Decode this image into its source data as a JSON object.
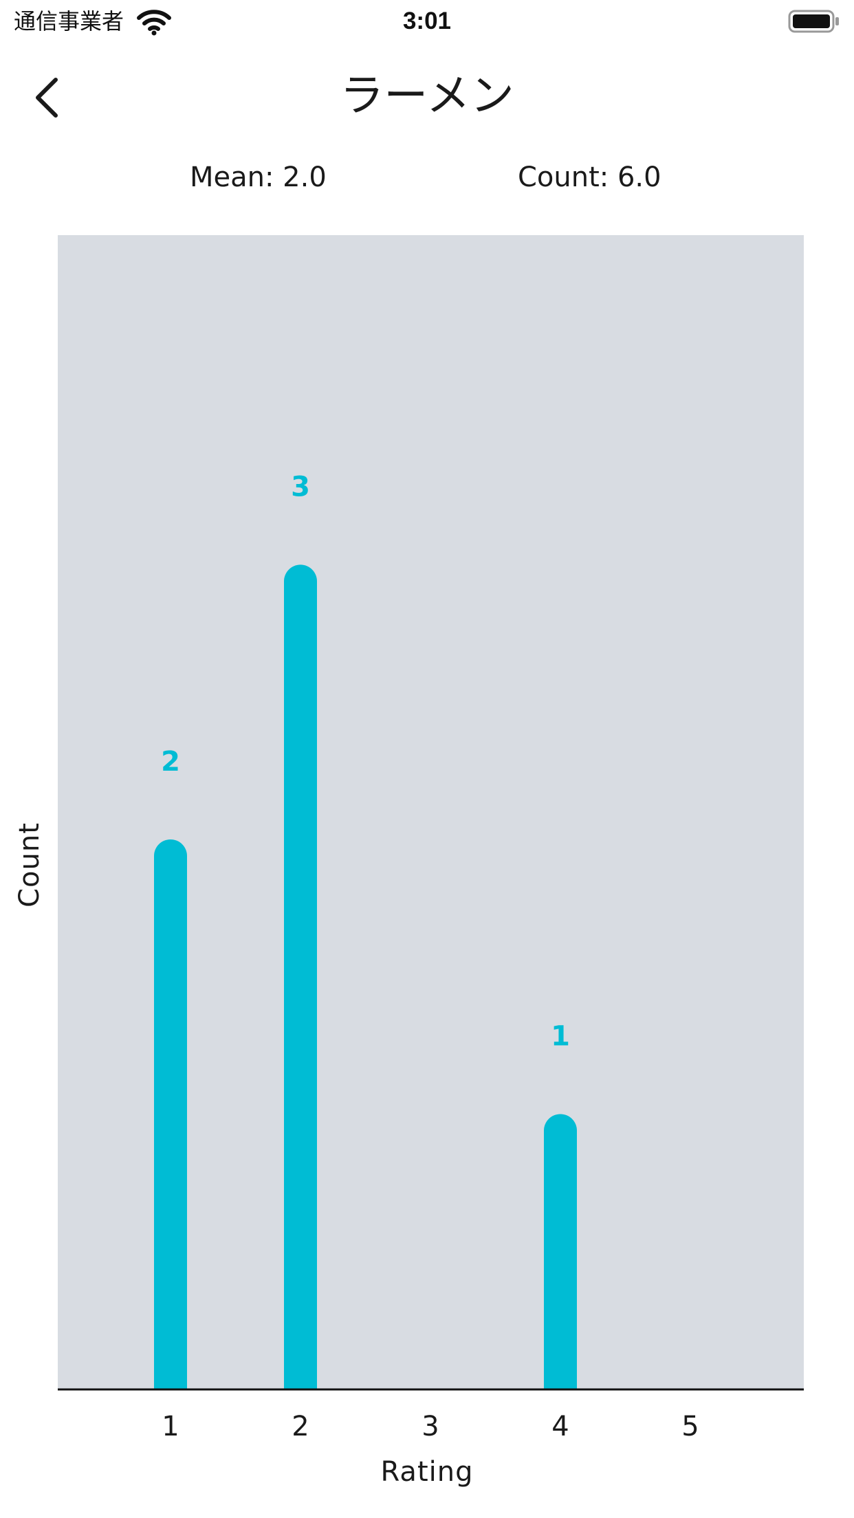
{
  "status_bar": {
    "carrier": "通信事業者",
    "time": "3:01",
    "wifi_icon": "wifi-icon",
    "battery_icon": "battery-full-icon"
  },
  "nav": {
    "back_icon": "chevron-left-icon",
    "title": "ラーメン"
  },
  "stats": {
    "mean": "Mean: 2.0",
    "count": "Count: 6.0"
  },
  "colors": {
    "bar": "#00bcd4",
    "plot_background": "#d8dce2",
    "axis": "#111111"
  },
  "chart_data": {
    "type": "bar",
    "categories": [
      "1",
      "2",
      "3",
      "4",
      "5"
    ],
    "values": [
      2,
      3,
      0,
      1,
      0
    ],
    "data_labels": [
      "2",
      "3",
      "",
      "1",
      ""
    ],
    "xlabel": "Rating",
    "ylabel": "Count",
    "ylim": [
      0,
      4.2
    ],
    "grid": false
  }
}
